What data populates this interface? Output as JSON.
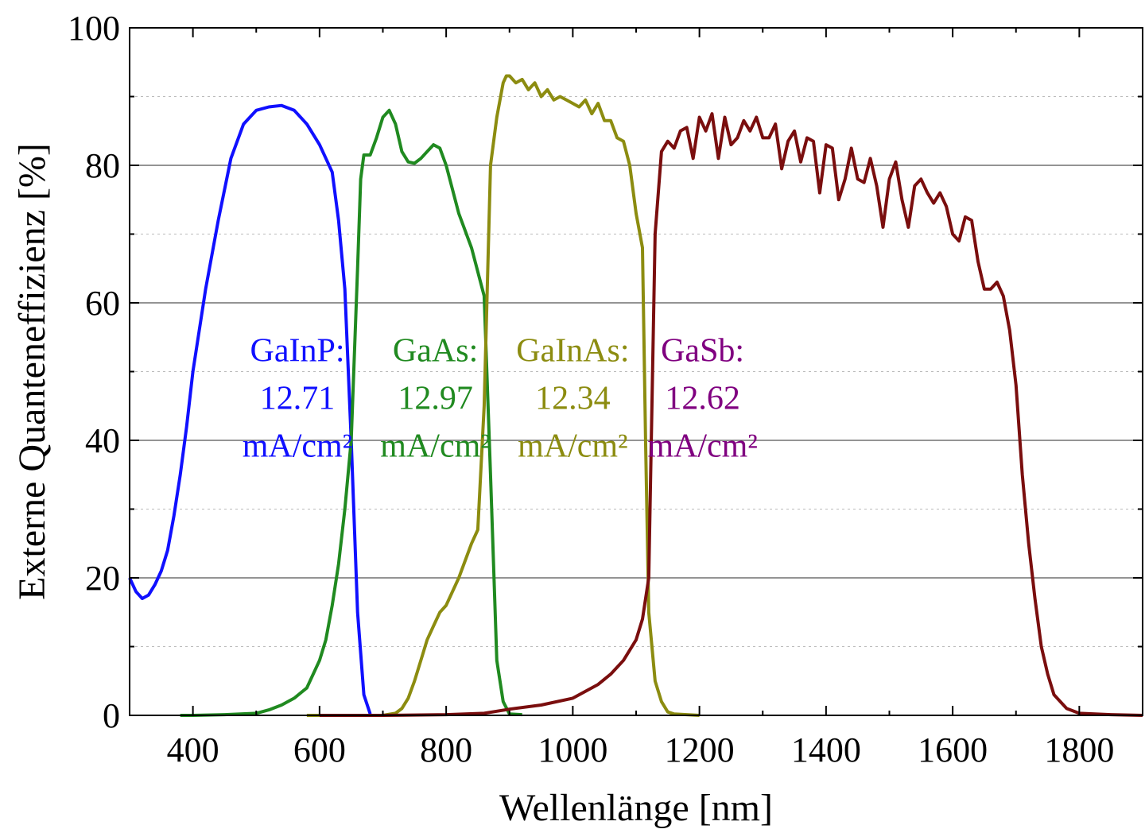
{
  "chart_data": {
    "type": "line",
    "xlabel": "Wellenlänge [nm]",
    "ylabel": "Externe Quanteneffizienz [%]",
    "xlim": [
      300,
      1900
    ],
    "ylim": [
      0,
      100
    ],
    "x_ticks": [
      400,
      600,
      800,
      1000,
      1200,
      1400,
      1600,
      1800
    ],
    "y_ticks": [
      0,
      20,
      40,
      60,
      80,
      100
    ],
    "x_tick_labels": [
      "400",
      "600",
      "800",
      "1000",
      "1200",
      "1400",
      "1600",
      "1800"
    ],
    "y_tick_labels": [
      "0",
      "20",
      "40",
      "60",
      "80",
      "100"
    ],
    "grid": {
      "major_y": true,
      "minor_y_dotted": true
    },
    "series": [
      {
        "color": "#1010ff",
        "x": [
          300,
          310,
          320,
          330,
          340,
          350,
          360,
          370,
          380,
          390,
          400,
          420,
          440,
          460,
          480,
          500,
          520,
          540,
          560,
          580,
          600,
          620,
          630,
          640,
          650,
          660,
          670,
          680
        ],
        "y": [
          20,
          18,
          17,
          17.5,
          19,
          21,
          24,
          29,
          35,
          42,
          50,
          62,
          72,
          81,
          86,
          88,
          88.5,
          88.7,
          88,
          86,
          83,
          79,
          72,
          62,
          40,
          15,
          3,
          0.2
        ]
      },
      {
        "color": "#208a20",
        "x": [
          380,
          400,
          450,
          500,
          520,
          540,
          560,
          580,
          600,
          610,
          620,
          630,
          640,
          650,
          660,
          665,
          670,
          680,
          690,
          700,
          710,
          720,
          730,
          740,
          750,
          760,
          770,
          780,
          790,
          800,
          820,
          840,
          860,
          870,
          880,
          890,
          900,
          920
        ],
        "y": [
          0,
          0,
          0.1,
          0.3,
          0.8,
          1.5,
          2.5,
          4,
          8,
          11,
          16,
          22,
          30,
          40,
          65,
          78,
          81.5,
          81.5,
          84,
          87,
          88,
          86,
          82,
          80.5,
          80.3,
          81,
          82,
          83,
          82.5,
          80,
          73,
          68,
          61,
          35,
          8,
          2,
          0.2,
          0.1
        ],
        "label_lines": [
          "GaAs:",
          "12.97",
          "mA/cm²"
        ]
      },
      {
        "color": "#8c8c10",
        "x": [
          580,
          700,
          720,
          730,
          740,
          750,
          760,
          770,
          780,
          790,
          800,
          820,
          840,
          850,
          860,
          870,
          880,
          890,
          895,
          900,
          910,
          920,
          930,
          940,
          950,
          960,
          970,
          980,
          990,
          1000,
          1010,
          1020,
          1030,
          1040,
          1050,
          1060,
          1070,
          1080,
          1090,
          1100,
          1110,
          1115,
          1120,
          1130,
          1140,
          1150,
          1160,
          1180,
          1200
        ],
        "y": [
          0,
          0,
          0.3,
          1,
          2.5,
          5,
          8,
          11,
          13,
          15,
          16,
          20,
          25,
          27,
          45,
          80,
          87,
          92,
          93,
          93,
          92,
          92.5,
          91,
          92,
          90,
          91,
          89.5,
          90,
          89.5,
          89,
          88.5,
          89.5,
          87.5,
          89,
          86.5,
          86.5,
          84,
          83.5,
          80,
          73,
          68,
          40,
          15,
          5,
          2,
          0.5,
          0.2,
          0.1,
          0
        ],
        "label_lines": [
          "GaInAs:",
          "12.34",
          "mA/cm²"
        ]
      },
      {
        "color": "#7a0e0e",
        "x": [
          600,
          700,
          800,
          860,
          880,
          900,
          950,
          1000,
          1020,
          1040,
          1060,
          1080,
          1100,
          1110,
          1120,
          1130,
          1140,
          1150,
          1160,
          1170,
          1180,
          1190,
          1200,
          1210,
          1220,
          1230,
          1240,
          1250,
          1260,
          1270,
          1280,
          1290,
          1300,
          1310,
          1320,
          1330,
          1340,
          1350,
          1360,
          1370,
          1380,
          1390,
          1400,
          1410,
          1420,
          1430,
          1440,
          1450,
          1460,
          1470,
          1480,
          1490,
          1500,
          1510,
          1520,
          1530,
          1540,
          1550,
          1560,
          1570,
          1580,
          1590,
          1600,
          1610,
          1620,
          1630,
          1640,
          1650,
          1660,
          1670,
          1680,
          1690,
          1700,
          1710,
          1720,
          1730,
          1740,
          1750,
          1760,
          1780,
          1800,
          1850,
          1900
        ],
        "y": [
          0,
          0,
          0.1,
          0.3,
          0.6,
          0.9,
          1.5,
          2.5,
          3.5,
          4.5,
          6,
          8,
          11,
          14,
          20,
          70,
          82,
          83.5,
          82.5,
          85,
          85.5,
          81,
          87,
          85,
          87.5,
          81,
          87,
          83,
          84,
          86.5,
          85,
          87,
          84,
          84,
          86,
          79.5,
          83.5,
          85,
          80.5,
          84,
          83.5,
          76,
          83,
          82.5,
          75,
          78,
          82.5,
          78,
          77.5,
          81,
          77,
          71,
          78,
          80.5,
          75,
          71,
          77,
          78,
          76,
          74.5,
          76,
          74,
          70,
          69,
          72.5,
          72,
          66,
          62,
          62,
          63,
          61,
          56,
          48,
          35,
          25,
          17,
          10,
          6,
          3,
          1,
          0.3,
          0.1,
          0
        ],
        "label_lines": [
          "GaSb:",
          "12.62",
          "mA/cm²"
        ],
        "label_color": "#800080"
      }
    ],
    "annotations": [
      {
        "color": "#1010ff",
        "lines": [
          "GaInP:",
          "12.71",
          "mA/cm²"
        ]
      },
      {
        "color": "#208a20",
        "lines": [
          "GaAs:",
          "12.97",
          "mA/cm²"
        ]
      },
      {
        "color": "#8c8c10",
        "lines": [
          "GaInAs:",
          "12.34",
          "mA/cm²"
        ]
      },
      {
        "color": "#800080",
        "lines": [
          "GaSb:",
          "12.62",
          "mA/cm²"
        ]
      }
    ]
  }
}
